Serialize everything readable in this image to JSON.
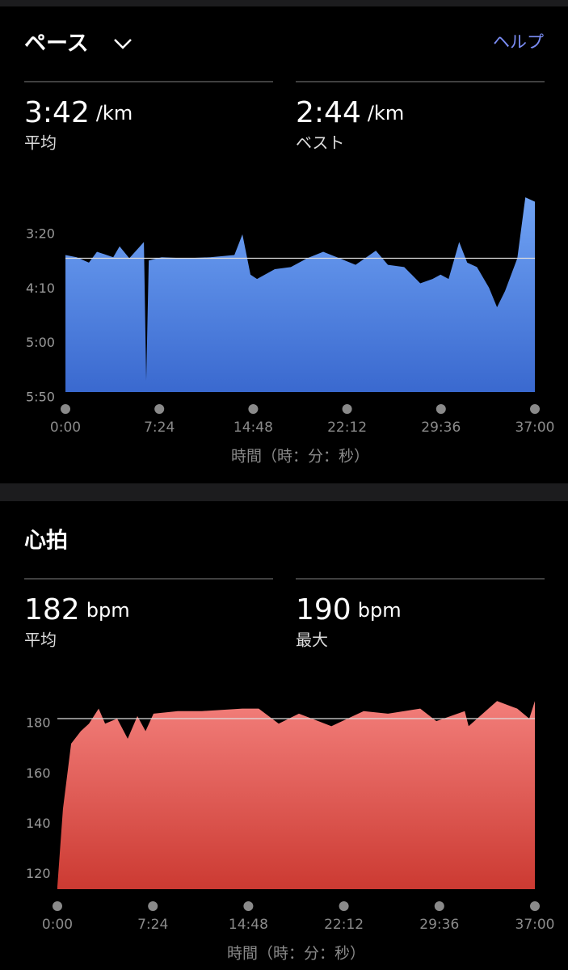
{
  "chart_data": [
    {
      "type": "area",
      "title": "ペース",
      "help": "ヘルプ",
      "stats": [
        {
          "value": "3:42",
          "unit": "/km",
          "label": "平均"
        },
        {
          "value": "2:44",
          "unit": "/km",
          "label": "ベスト"
        }
      ],
      "x_label": "時間（時：分：秒）",
      "x": [
        0,
        53,
        111,
        149,
        226,
        256,
        302,
        371,
        382,
        394,
        455,
        569,
        684,
        799,
        837,
        875,
        906,
        990,
        1066,
        1143,
        1219,
        1296,
        1372,
        1468,
        1525,
        1602,
        1678,
        1736,
        1774,
        1812,
        1862,
        1900,
        1946,
        2003,
        2041,
        2079,
        2137,
        2175,
        2220
      ],
      "values": [
        219,
        221,
        226,
        216,
        221,
        211,
        222,
        207,
        334,
        224,
        221,
        222,
        221,
        219,
        200,
        237,
        241,
        232,
        230,
        222,
        216,
        222,
        228,
        215,
        228,
        230,
        245,
        241,
        237,
        241,
        207,
        226,
        230,
        249,
        267,
        252,
        222,
        166,
        170
      ],
      "average": 222,
      "gradient": [
        "#70a3f4",
        "#3a69cf"
      ],
      "xlim": [
        0,
        2220
      ],
      "xticks": [
        {
          "value": 0,
          "label": "0:00"
        },
        {
          "value": 444,
          "label": "7:24"
        },
        {
          "value": 888,
          "label": "14:48"
        },
        {
          "value": 1332,
          "label": "22:12"
        },
        {
          "value": 1776,
          "label": "29:36"
        },
        {
          "value": 2220,
          "label": "37:00"
        }
      ],
      "ylim": [
        350,
        160
      ],
      "yticks": [
        {
          "value": 200,
          "label": "3:20"
        },
        {
          "value": 250,
          "label": "4:10"
        },
        {
          "value": 300,
          "label": "5:00"
        },
        {
          "value": 350,
          "label": "5:50"
        }
      ]
    },
    {
      "type": "area",
      "title": "心拍",
      "stats": [
        {
          "value": "182",
          "unit": "bpm",
          "label": "平均"
        },
        {
          "value": "190",
          "unit": "bpm",
          "label": "最大"
        }
      ],
      "x_label": "時間（時：分：秒）",
      "x": [
        0,
        26,
        64,
        109,
        147,
        192,
        222,
        278,
        327,
        372,
        410,
        447,
        560,
        672,
        860,
        936,
        1029,
        1123,
        1274,
        1424,
        1537,
        1687,
        1762,
        1894,
        1912,
        2044,
        2138,
        2194,
        2220
      ],
      "values": [
        115,
        146,
        172,
        177,
        180,
        186,
        180,
        182,
        174,
        183,
        177,
        184,
        185,
        185,
        186,
        186,
        180,
        184,
        179,
        185,
        184,
        186,
        181,
        185,
        179,
        189,
        186,
        182,
        189
      ],
      "average": 182,
      "gradient": [
        "#f27e7a",
        "#cc3a32"
      ],
      "xlim": [
        0,
        2220
      ],
      "xticks": [
        {
          "value": 0,
          "label": "0:00"
        },
        {
          "value": 444,
          "label": "7:24"
        },
        {
          "value": 888,
          "label": "14:48"
        },
        {
          "value": 1332,
          "label": "22:12"
        },
        {
          "value": 1776,
          "label": "29:36"
        },
        {
          "value": 2220,
          "label": "37:00"
        }
      ],
      "ylim": [
        114,
        192
      ],
      "yticks": [
        120,
        140,
        160,
        180
      ]
    }
  ]
}
